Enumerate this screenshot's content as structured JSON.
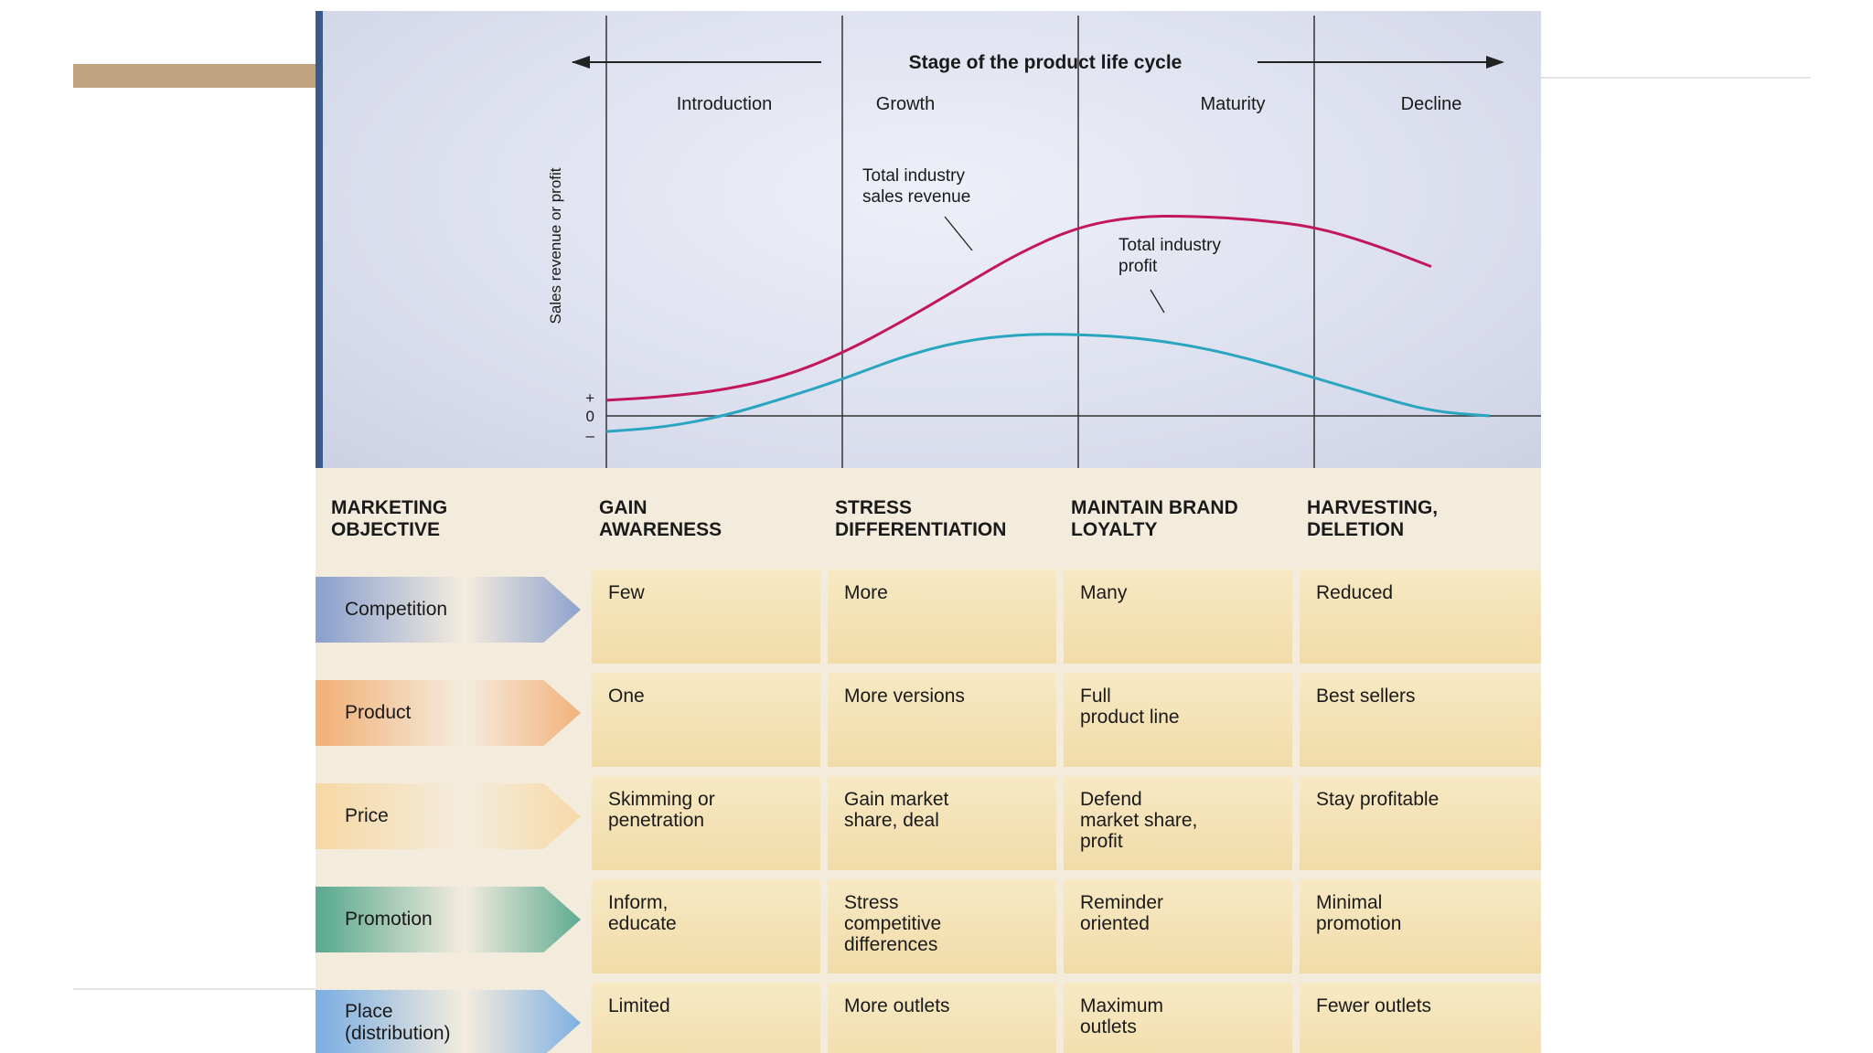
{
  "chart_data": {
    "type": "line",
    "title": "Stage of the product life cycle",
    "ylabel": "Sales revenue or profit",
    "y_ticks": [
      "+",
      "0",
      "–"
    ],
    "stages": [
      "Introduction",
      "Growth",
      "Maturity",
      "Decline"
    ],
    "x": [
      0,
      0.25,
      0.5,
      0.75,
      1.0,
      1.25,
      1.5,
      1.75,
      2.0,
      2.25,
      2.5,
      2.75,
      3.0,
      3.25,
      3.5,
      3.75,
      4.0
    ],
    "series": [
      {
        "name": "Total industry sales revenue",
        "color": "#c2185b",
        "values": [
          0.18,
          0.22,
          0.3,
          0.45,
          0.72,
          1.08,
          1.48,
          1.88,
          2.18,
          2.3,
          2.3,
          2.26,
          2.18,
          1.98,
          1.72,
          null,
          null
        ]
      },
      {
        "name": "Total industry profit",
        "color": "#2aa5c0",
        "values": [
          -0.18,
          -0.13,
          0.0,
          0.2,
          0.42,
          0.68,
          0.86,
          0.94,
          0.94,
          0.9,
          0.8,
          0.64,
          0.44,
          0.24,
          0.05,
          0.0,
          null
        ]
      }
    ],
    "annotations": [
      "Total industry sales revenue",
      "Total industry profit"
    ]
  },
  "table": {
    "header_label": "MARKETING\nOBJECTIVE",
    "objectives": [
      "GAIN\nAWARENESS",
      "STRESS\nDIFFERENTIATION",
      "MAINTAIN BRAND\nLOYALTY",
      "HARVESTING,\nDELETION"
    ],
    "rows": [
      {
        "label": "Competition",
        "color": "#8ea2cf",
        "cells": [
          "Few",
          "More",
          "Many",
          "Reduced"
        ]
      },
      {
        "label": "Product",
        "color": "#f2b27a",
        "cells": [
          "One",
          "More versions",
          "Full\nproduct line",
          "Best sellers"
        ]
      },
      {
        "label": "Price",
        "color": "#f7d9a6",
        "cells": [
          "Skimming or\npenetration",
          "Gain market\nshare, deal",
          "Defend\nmarket share,\nprofit",
          "Stay profitable"
        ]
      },
      {
        "label": "Promotion",
        "color": "#5eab92",
        "cells": [
          "Inform,\neducate",
          "Stress\ncompetitive\ndifferences",
          "Reminder\noriented",
          "Minimal\npromotion"
        ]
      },
      {
        "label": "Place\n(distribution)",
        "color": "#7fb0e2",
        "cells": [
          "Limited",
          "More outlets",
          "Maximum\noutlets",
          "Fewer outlets"
        ]
      }
    ]
  }
}
